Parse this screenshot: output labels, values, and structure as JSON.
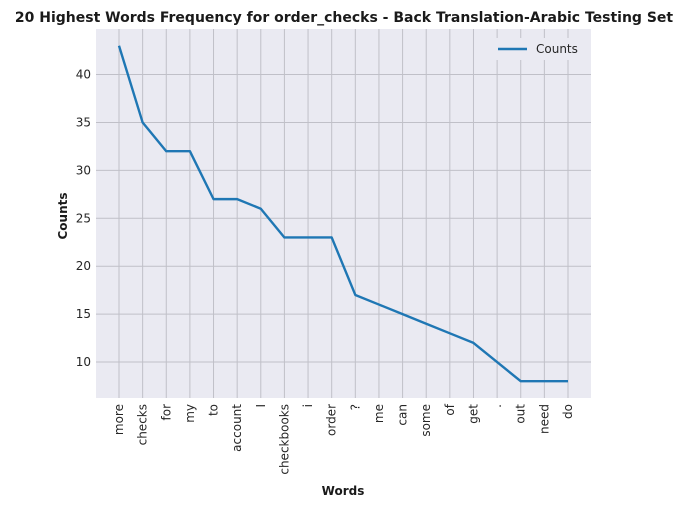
{
  "chart_data": {
    "type": "line",
    "title": "20 Highest Words Frequency for order_checks - Back Translation-Arabic Testing Set",
    "xlabel": "Words",
    "ylabel": "Counts",
    "categories": [
      "more",
      "checks",
      "for",
      "my",
      "to",
      "account",
      "I",
      "checkbooks",
      "i",
      "order",
      "?",
      "me",
      "can",
      "some",
      "of",
      "get",
      ".",
      "out",
      "need",
      "do"
    ],
    "series": [
      {
        "name": "Counts",
        "values": [
          43,
          35,
          32,
          32,
          27,
          27,
          26,
          23,
          23,
          23,
          17,
          16,
          15,
          14,
          13,
          12,
          10,
          8,
          8,
          8
        ]
      }
    ],
    "yticks": [
      10,
      15,
      20,
      25,
      30,
      35,
      40
    ],
    "ylim": [
      6.25,
      44.75
    ],
    "grid": true,
    "legend_position": "top-right",
    "colors": {
      "line": "#1f77b4",
      "plot_bg": "#eaeaf2",
      "grid": "#c0c0c8"
    }
  }
}
